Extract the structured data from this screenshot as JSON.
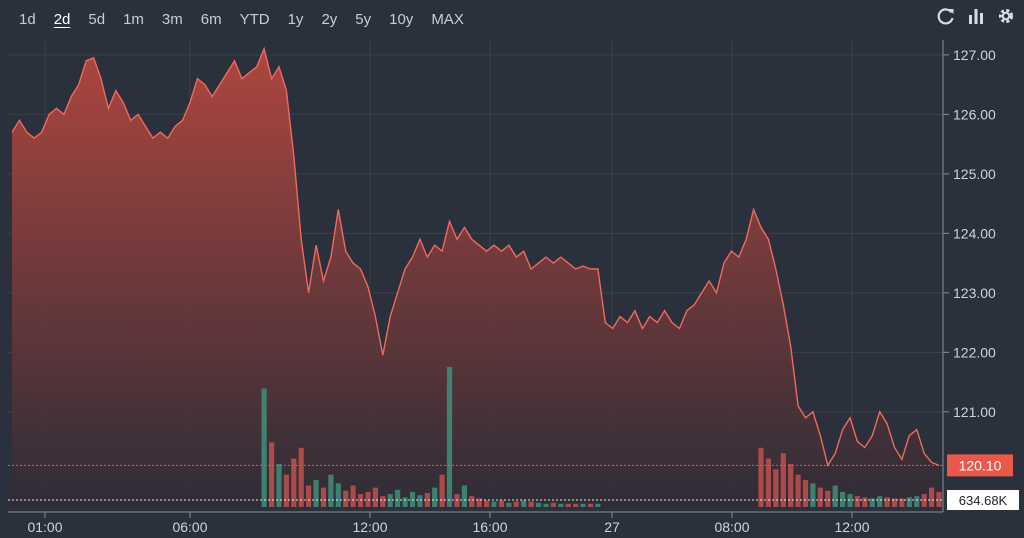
{
  "ranges": {
    "items": [
      "1d",
      "2d",
      "5d",
      "1m",
      "3m",
      "6m",
      "YTD",
      "1y",
      "2y",
      "5y",
      "10y",
      "MAX"
    ],
    "active": "2d"
  },
  "tools": [
    "refresh-icon",
    "chart-type-icon",
    "settings-icon"
  ],
  "colors": {
    "background": "#2a303c",
    "price_line": "#ef6a5e",
    "current_price_badge": "#e8584b",
    "volume_down": "#c0504d",
    "volume_up": "#3f8f7a",
    "grid": "#3a414d"
  },
  "chart_data": {
    "type": "area",
    "x_tick_labels": [
      "01:00",
      "06:00",
      "12:00",
      "16:00",
      "27",
      "08:00",
      "12:00"
    ],
    "y_tick_labels": [
      "121.00",
      "122.00",
      "123.00",
      "124.00",
      "125.00",
      "126.00",
      "127.00"
    ],
    "ylim": [
      119.4,
      127.25
    ],
    "current_price": 120.1,
    "current_price_label": "120.10",
    "volume_label": "634.68K",
    "price_series": [
      125.7,
      125.9,
      125.7,
      125.6,
      125.7,
      126.0,
      126.1,
      126.0,
      126.3,
      126.5,
      126.9,
      126.95,
      126.6,
      126.1,
      126.4,
      126.2,
      125.9,
      126.0,
      125.8,
      125.6,
      125.7,
      125.6,
      125.8,
      125.9,
      126.2,
      126.6,
      126.5,
      126.3,
      126.5,
      126.7,
      126.9,
      126.6,
      126.7,
      126.8,
      127.1,
      126.6,
      126.8,
      126.4,
      125.3,
      123.9,
      123.0,
      123.8,
      123.2,
      123.6,
      124.4,
      123.7,
      123.5,
      123.4,
      123.1,
      122.6,
      121.95,
      122.6,
      123.0,
      123.4,
      123.6,
      123.9,
      123.6,
      123.8,
      123.7,
      124.2,
      123.9,
      124.1,
      123.9,
      123.8,
      123.7,
      123.8,
      123.7,
      123.8,
      123.6,
      123.7,
      123.4,
      123.5,
      123.6,
      123.5,
      123.6,
      123.5,
      123.4,
      123.45,
      123.4,
      123.4,
      122.5,
      122.4,
      122.6,
      122.5,
      122.7,
      122.4,
      122.6,
      122.5,
      122.7,
      122.5,
      122.4,
      122.7,
      122.8,
      123.0,
      123.2,
      123.0,
      123.5,
      123.7,
      123.6,
      123.9,
      124.4,
      124.1,
      123.9,
      123.4,
      122.8,
      122.1,
      121.1,
      120.9,
      121.0,
      120.6,
      120.1,
      120.3,
      120.7,
      120.9,
      120.5,
      120.4,
      120.6,
      121.0,
      120.8,
      120.4,
      120.2,
      120.6,
      120.7,
      120.3,
      120.15,
      120.1
    ],
    "volume_series": [
      0,
      0,
      0,
      0,
      0,
      0,
      0,
      0,
      0,
      0,
      0,
      0,
      0,
      0,
      0,
      0,
      0,
      0,
      0,
      0,
      0,
      0,
      0,
      0,
      0,
      0,
      0,
      0,
      0,
      0,
      0,
      0,
      0,
      0,
      110,
      60,
      40,
      30,
      45,
      55,
      20,
      25,
      18,
      30,
      22,
      15,
      20,
      12,
      14,
      18,
      10,
      12,
      16,
      9,
      14,
      11,
      13,
      18,
      30,
      130,
      12,
      20,
      10,
      8,
      6,
      5,
      6,
      4,
      5,
      6,
      5,
      4,
      3,
      4,
      3,
      3,
      3,
      3,
      3,
      3,
      0,
      0,
      0,
      0,
      0,
      0,
      0,
      0,
      0,
      0,
      0,
      0,
      0,
      0,
      0,
      0,
      0,
      0,
      0,
      0,
      0,
      55,
      45,
      35,
      50,
      40,
      30,
      25,
      22,
      18,
      15,
      20,
      14,
      12,
      10,
      9,
      8,
      10,
      9,
      8,
      8,
      9,
      10,
      12,
      18,
      14
    ]
  }
}
